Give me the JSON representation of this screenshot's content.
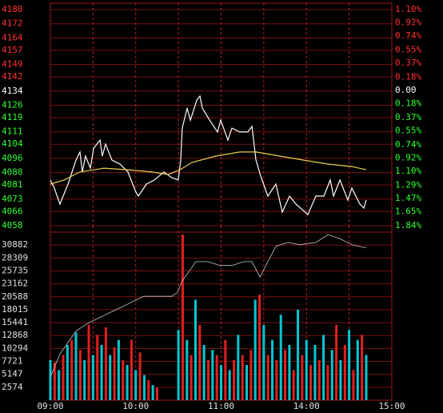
{
  "chart_data": [
    {
      "type": "line",
      "xlim": [
        0,
        240
      ],
      "ylim": [
        4058,
        4180
      ],
      "yticks": [
        4180,
        4172,
        4164,
        4157,
        4149,
        4142,
        4134,
        4126,
        4119,
        4111,
        4104,
        4096,
        4088,
        4081,
        4073,
        4066,
        4058
      ],
      "y2lim": [
        -1.84,
        1.1
      ],
      "y2ticks": [
        {
          "value": 1.1,
          "label": "1.10%"
        },
        {
          "value": 0.92,
          "label": "0.92%"
        },
        {
          "value": 0.74,
          "label": "0.74%"
        },
        {
          "value": 0.55,
          "label": "0.55%"
        },
        {
          "value": 0.37,
          "label": "0.37%"
        },
        {
          "value": 0.18,
          "label": "0.18%"
        },
        {
          "value": 0,
          "label": "0.00"
        },
        {
          "value": -0.18,
          "label": "0.18%"
        },
        {
          "value": -0.37,
          "label": "0.37%"
        },
        {
          "value": -0.55,
          "label": "0.55%"
        },
        {
          "value": -0.74,
          "label": "0.74%"
        },
        {
          "value": -0.92,
          "label": "0.92%"
        },
        {
          "value": -1.1,
          "label": "1.10%"
        },
        {
          "value": -1.29,
          "label": "1.29%"
        },
        {
          "value": -1.47,
          "label": "1.47%"
        },
        {
          "value": -1.65,
          "label": "1.65%"
        },
        {
          "value": -1.84,
          "label": "1.84%"
        }
      ],
      "series": [
        {
          "color": "#ffffff",
          "x": [
            0,
            2.8,
            6.7,
            12.4,
            18.0,
            20.8,
            22.5,
            24.7,
            28.1,
            30.4,
            34.9,
            36.5,
            38.8,
            43.3,
            48.9,
            54.5,
            60.1,
            61.8,
            67.5,
            73.1,
            79.8,
            85.4,
            89.9,
            91.6,
            92.7,
            96.1,
            98.4,
            102.9,
            105.1,
            106.8,
            111.9,
            117.5,
            119.7,
            124.8,
            127.6,
            133.2,
            138.8,
            141.7,
            144.5,
            147.8,
            152.9,
            158.5,
            163.0,
            168.1,
            172.6,
            181.0,
            186.6,
            192.2,
            196.7,
            199.0,
            203.5,
            209.1,
            211.9,
            217.5,
            220.3,
            222.0
          ],
          "values": [
            4083.8,
            4079.2,
            4070.2,
            4081.5,
            4095.0,
            4099.6,
            4088.3,
            4097.3,
            4090.5,
            4101.8,
            4106.3,
            4097.3,
            4104.1,
            4095.0,
            4092.8,
            4088.3,
            4077.0,
            4074.7,
            4081.5,
            4083.8,
            4088.3,
            4085.1,
            4083.8,
            4095.0,
            4113.1,
            4124.4,
            4117.6,
            4128.9,
            4131.2,
            4124.4,
            4117.6,
            4110.9,
            4117.6,
            4106.3,
            4113.1,
            4110.9,
            4110.9,
            4114.0,
            4095.0,
            4086.0,
            4074.7,
            4081.5,
            4065.7,
            4074.7,
            4070.2,
            4064.3,
            4074.7,
            4074.7,
            4083.8,
            4074.7,
            4083.8,
            4072.5,
            4079.2,
            4070.2,
            4068.0,
            4072.5
          ]
        },
        {
          "color": "#e8d050",
          "x": [
            0,
            9.6,
            20.8,
            37.7,
            54.5,
            71.4,
            82.6,
            91.1,
            99.5,
            116.4,
            133.2,
            144.5,
            161.3,
            178.2,
            195.1,
            211.9,
            222.0
          ],
          "values": [
            4081.5,
            4083.8,
            4088.3,
            4090.5,
            4089.6,
            4088.3,
            4086.9,
            4089.6,
            4093.7,
            4097.3,
            4099.6,
            4099.6,
            4097.3,
            4095.0,
            4092.8,
            4091.4,
            4089.6
          ]
        }
      ]
    },
    {
      "type": "bar",
      "xlim": [
        0,
        240
      ],
      "ylim": [
        0,
        33456
      ],
      "yticks": [
        30882,
        28309,
        25735,
        23162,
        20588,
        18015,
        15441,
        12868,
        10294,
        7721,
        5147,
        2574
      ],
      "xticks": [
        {
          "value": 0,
          "label": "09:00"
        },
        {
          "value": 60,
          "label": "10:00"
        },
        {
          "value": 120,
          "label": "11:00"
        },
        {
          "value": 180,
          "label": "14:00"
        },
        {
          "value": 240,
          "label": "15:00"
        }
      ],
      "x": [
        0,
        3,
        6,
        9,
        12,
        15,
        18,
        21,
        24,
        27,
        30,
        33,
        36,
        39,
        42,
        45,
        48,
        51,
        54,
        57,
        60,
        63,
        66,
        69,
        72,
        75,
        90,
        93,
        96,
        99,
        102,
        105,
        108,
        111,
        114,
        117,
        120,
        123,
        126,
        129,
        132,
        135,
        138,
        141,
        144,
        147,
        150,
        153,
        156,
        159,
        162,
        165,
        168,
        171,
        174,
        177,
        180,
        183,
        186,
        189,
        192,
        195,
        198,
        201,
        204,
        207,
        210,
        213,
        216,
        219,
        222
      ],
      "values": [
        8000,
        7500,
        6000,
        9000,
        11000,
        12000,
        13500,
        10000,
        8000,
        15000,
        9000,
        13000,
        11000,
        14500,
        9000,
        10500,
        12000,
        8000,
        7000,
        12000,
        6000,
        9500,
        5000,
        4000,
        3000,
        2500,
        14000,
        33000,
        12000,
        9000,
        20000,
        15000,
        11000,
        8000,
        10000,
        9000,
        7000,
        12000,
        6000,
        8000,
        13000,
        9000,
        7000,
        10000,
        20000,
        21000,
        15000,
        9000,
        12000,
        8000,
        17000,
        10000,
        11000,
        6000,
        18000,
        9000,
        12000,
        7000,
        11000,
        8000,
        13000,
        7000,
        10000,
        15000,
        8000,
        11000,
        14000,
        6000,
        12000,
        13000,
        9000
      ],
      "colors": [
        "#00c8d2",
        "#e02020"
      ],
      "line": {
        "color": "#c8c8c8",
        "x": [
          0,
          6.7,
          12.4,
          18.0,
          26.4,
          32.0,
          37.7,
          43.3,
          48.9,
          54.5,
          60.1,
          65.8,
          71.4,
          77.0,
          85.4,
          89.3,
          92.7,
          96.6,
          102.3,
          110.7,
          119.2,
          127.6,
          136.0,
          141.7,
          147.3,
          152.9,
          158.5,
          167.0,
          175.4,
          186.6,
          195.1,
          203.5,
          211.9,
          222.0
        ],
        "values": [
          4596,
          9192,
          11490,
          13788,
          15320,
          16086,
          16852,
          17618,
          18384,
          19150,
          19916,
          20682,
          20682,
          20682,
          20682,
          21448,
          23746,
          25278,
          27576,
          27576,
          26810,
          26810,
          27576,
          27576,
          24512,
          27576,
          30640,
          31406,
          30946,
          31406,
          32938,
          32172,
          30946,
          30334
        ]
      }
    }
  ]
}
